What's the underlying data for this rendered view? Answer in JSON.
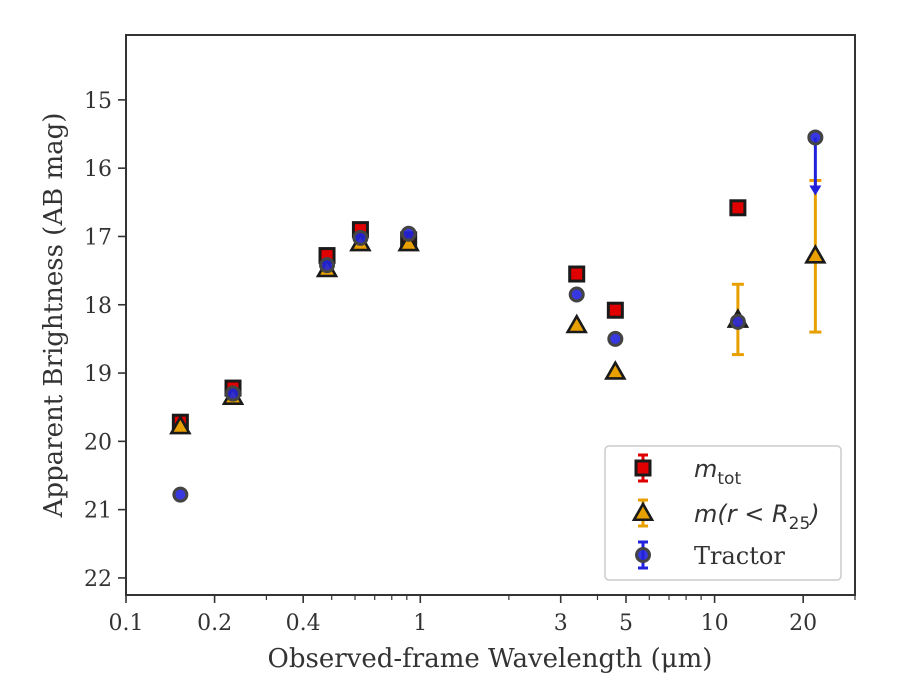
{
  "chart_data": {
    "type": "scatter",
    "xlabel": "Observed-frame Wavelength (μm)",
    "ylabel": "Apparent Brightness (AB mag)",
    "x_scale": "log",
    "xlim": [
      0.1,
      30
    ],
    "ylim": [
      22.25,
      14.05
    ],
    "y_inverted": true,
    "x_ticks": [
      {
        "value": 0.1,
        "label": "0.1"
      },
      {
        "value": 0.2,
        "label": "0.2"
      },
      {
        "value": 0.4,
        "label": "0.4"
      },
      {
        "value": 1,
        "label": "1"
      },
      {
        "value": 3,
        "label": "3"
      },
      {
        "value": 5,
        "label": "5"
      },
      {
        "value": 10,
        "label": "10"
      },
      {
        "value": 20,
        "label": "20"
      }
    ],
    "y_ticks": [
      {
        "value": 15,
        "label": "15"
      },
      {
        "value": 16,
        "label": "16"
      },
      {
        "value": 17,
        "label": "17"
      },
      {
        "value": 18,
        "label": "18"
      },
      {
        "value": 19,
        "label": "19"
      },
      {
        "value": 20,
        "label": "20"
      },
      {
        "value": 21,
        "label": "21"
      },
      {
        "value": 22,
        "label": "22"
      }
    ],
    "grid": false,
    "legend_position": "lower right",
    "series": [
      {
        "name": "m_tot",
        "marker": "square",
        "color": "#e00000",
        "edge_color": "#1a1a1a",
        "points": [
          {
            "x": 0.153,
            "y": 19.72
          },
          {
            "x": 0.231,
            "y": 19.22
          },
          {
            "x": 0.482,
            "y": 17.28
          },
          {
            "x": 0.626,
            "y": 16.9
          },
          {
            "x": 0.913,
            "y": 17.05
          },
          {
            "x": 3.4,
            "y": 17.55
          },
          {
            "x": 4.6,
            "y": 18.08
          },
          {
            "x": 12.0,
            "y": 16.58
          }
        ]
      },
      {
        "name": "m(r < R25)",
        "marker": "triangle",
        "color": "#e8a000",
        "edge_color": "#1a1a1a",
        "points": [
          {
            "x": 0.153,
            "y": 19.78
          },
          {
            "x": 0.231,
            "y": 19.35
          },
          {
            "x": 0.482,
            "y": 17.48
          },
          {
            "x": 0.626,
            "y": 17.1
          },
          {
            "x": 0.913,
            "y": 17.1
          },
          {
            "x": 3.4,
            "y": 18.3
          },
          {
            "x": 4.6,
            "y": 18.98
          },
          {
            "x": 12.0,
            "y": 18.22,
            "err_lo": 17.7,
            "err_hi": 18.73
          },
          {
            "x": 22.0,
            "y": 17.28,
            "err_lo": 16.18,
            "err_hi": 18.4
          }
        ]
      },
      {
        "name": "Tractor",
        "marker": "circle",
        "color": "#2222dd",
        "edge_color": "#444444",
        "points": [
          {
            "x": 0.153,
            "y": 20.78
          },
          {
            "x": 0.231,
            "y": 19.3
          },
          {
            "x": 0.482,
            "y": 17.42
          },
          {
            "x": 0.626,
            "y": 17.02
          },
          {
            "x": 0.913,
            "y": 16.96
          },
          {
            "x": 3.4,
            "y": 17.85
          },
          {
            "x": 4.6,
            "y": 18.5
          },
          {
            "x": 12.0,
            "y": 18.25
          },
          {
            "x": 22.0,
            "y": 15.55,
            "upper_limit_to": 16.4
          }
        ]
      }
    ]
  },
  "legend": {
    "entries": [
      {
        "prefix": "m",
        "subscript": "tot",
        "suffix": ""
      },
      {
        "prefix": "m(r < R",
        "subscript": "25",
        "suffix": ")"
      },
      {
        "prefix": "Tractor",
        "subscript": "",
        "suffix": ""
      }
    ]
  }
}
